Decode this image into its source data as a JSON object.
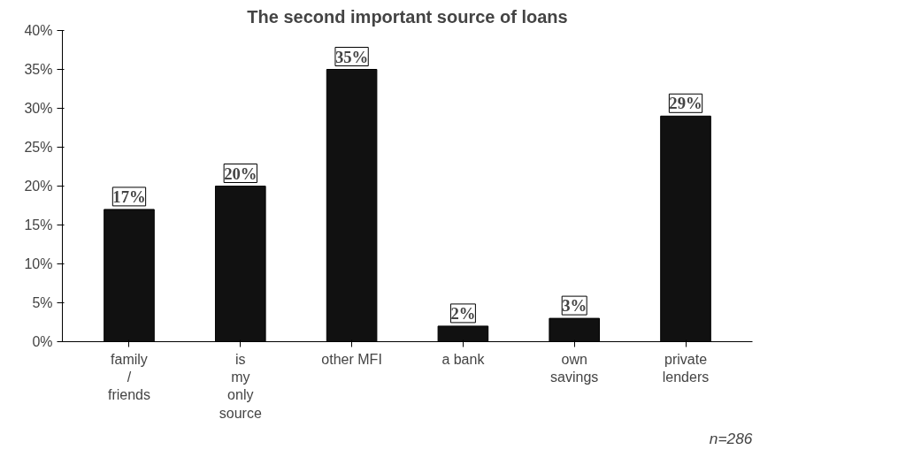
{
  "chart_data": {
    "type": "bar",
    "title": "The second important source of loans",
    "categories": [
      "family / friends",
      "is my only source",
      "other MFI",
      "a bank",
      "own savings",
      "private lenders"
    ],
    "values": [
      17,
      20,
      35,
      2,
      3,
      29
    ],
    "color": "#111111",
    "ylim": [
      0,
      40
    ],
    "yticks": [
      {
        "value": 0,
        "label": "0%"
      },
      {
        "value": 5,
        "label": "5%"
      },
      {
        "value": 10,
        "label": "10%"
      },
      {
        "value": 15,
        "label": "15%"
      },
      {
        "value": 20,
        "label": "20%"
      },
      {
        "value": 25,
        "label": "25%"
      },
      {
        "value": 30,
        "label": "30%"
      },
      {
        "value": 35,
        "label": "35%"
      },
      {
        "value": 40,
        "label": "40%"
      }
    ],
    "value_labels": [
      "17%",
      "20%",
      "35%",
      "2%",
      "3%",
      "29%"
    ],
    "annotations": [
      "n=286"
    ],
    "grid": false
  }
}
